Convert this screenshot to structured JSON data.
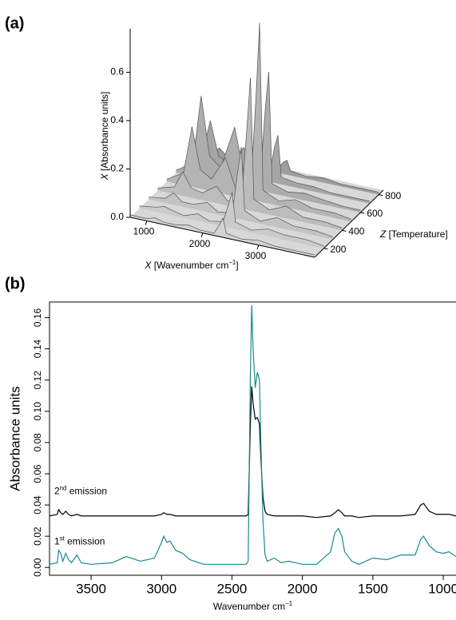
{
  "chart_data": [
    {
      "type": "surface3d",
      "panel": "(a)",
      "y_label": [
        "X",
        " [Absorbance units]"
      ],
      "x_label": [
        "X",
        " [Wavenumber cm",
        "−1",
        "]"
      ],
      "t_label": [
        "Z",
        " [Temperature]"
      ],
      "ylim": [
        0,
        0.78
      ],
      "yticks": [
        {
          "value": 0,
          "label": "0.0"
        },
        {
          "value": 0.2,
          "label": "0.2"
        },
        {
          "value": 0.4,
          "label": "0.4"
        },
        {
          "value": 0.6,
          "label": "0.6"
        }
      ],
      "xlim": [
        700,
        4000
      ],
      "xticks": [
        1000,
        2000,
        3000
      ],
      "tlim": [
        100,
        850
      ],
      "tticks": [
        200,
        400,
        600,
        800
      ],
      "surface": {
        "x": [
          700,
          1000,
          1150,
          1300,
          1500,
          1750,
          1950,
          2200,
          2300,
          2360,
          2420,
          2700,
          3000,
          3300,
          3700,
          4000
        ],
        "t": [
          100,
          200,
          300,
          400,
          500,
          600,
          700,
          800
        ],
        "values": [
          [
            0.01,
            0.01,
            0.02,
            0.01,
            0.01,
            0.02,
            0.01,
            0.01,
            0.05,
            0.08,
            0.02,
            0.01,
            0.02,
            0.01,
            0.01,
            0.01
          ],
          [
            0.01,
            0.02,
            0.03,
            0.02,
            0.01,
            0.03,
            0.01,
            0.02,
            0.1,
            0.15,
            0.03,
            0.01,
            0.03,
            0.02,
            0.02,
            0.01
          ],
          [
            0.01,
            0.02,
            0.05,
            0.02,
            0.02,
            0.04,
            0.01,
            0.02,
            0.2,
            0.3,
            0.04,
            0.01,
            0.04,
            0.02,
            0.02,
            0.01
          ],
          [
            0.01,
            0.03,
            0.1,
            0.04,
            0.03,
            0.07,
            0.02,
            0.03,
            0.35,
            0.55,
            0.05,
            0.02,
            0.05,
            0.02,
            0.02,
            0.01
          ],
          [
            0.01,
            0.05,
            0.25,
            0.08,
            0.05,
            0.15,
            0.02,
            0.04,
            0.45,
            0.74,
            0.05,
            0.02,
            0.04,
            0.02,
            0.02,
            0.01
          ],
          [
            0.01,
            0.05,
            0.34,
            0.1,
            0.06,
            0.24,
            0.02,
            0.03,
            0.35,
            0.5,
            0.04,
            0.02,
            0.03,
            0.02,
            0.01,
            0.01
          ],
          [
            0.01,
            0.04,
            0.2,
            0.06,
            0.04,
            0.12,
            0.02,
            0.02,
            0.15,
            0.2,
            0.03,
            0.02,
            0.02,
            0.01,
            0.01,
            0.01
          ],
          [
            0.01,
            0.02,
            0.05,
            0.02,
            0.02,
            0.04,
            0.01,
            0.02,
            0.05,
            0.06,
            0.02,
            0.01,
            0.02,
            0.01,
            0.01,
            0.01
          ]
        ]
      }
    },
    {
      "type": "line",
      "panel": "(b)",
      "y_label": "Absorbance units",
      "x_label": [
        "Wavenumber cm",
        "−1"
      ],
      "xlim": [
        3795,
        910
      ],
      "xticks": [
        3500,
        3000,
        2500,
        2000,
        1500,
        1000
      ],
      "ylim": [
        -0.005,
        0.17
      ],
      "yticks": [
        {
          "value": 0,
          "label": "0.00"
        },
        {
          "value": 0.02,
          "label": "0.02"
        },
        {
          "value": 0.04,
          "label": "0.04"
        },
        {
          "value": 0.06,
          "label": "0.06"
        },
        {
          "value": 0.08,
          "label": "0.08"
        },
        {
          "value": 0.1,
          "label": "0.10"
        },
        {
          "value": 0.12,
          "label": "0.12"
        },
        {
          "value": 0.14,
          "label": "0.14"
        },
        {
          "value": 0.16,
          "label": "0.16"
        }
      ],
      "x": [
        3795,
        3740,
        3730,
        3715,
        3700,
        3680,
        3660,
        3640,
        3600,
        3570,
        3500,
        3350,
        3250,
        3150,
        3050,
        3000,
        2985,
        2960,
        2940,
        2900,
        2850,
        2800,
        2700,
        2500,
        2400,
        2385,
        2370,
        2360,
        2350,
        2335,
        2320,
        2305,
        2295,
        2280,
        2265,
        2250,
        2200,
        2150,
        2100,
        2000,
        1900,
        1800,
        1770,
        1745,
        1720,
        1700,
        1650,
        1600,
        1500,
        1400,
        1300,
        1200,
        1160,
        1140,
        1100,
        1050,
        1000,
        960,
        910
      ],
      "series": [
        {
          "label": [
            "2",
            "nd",
            " emission"
          ],
          "color": "#000000",
          "values": [
            0.033,
            0.034,
            0.037,
            0.035,
            0.034,
            0.036,
            0.034,
            0.033,
            0.034,
            0.033,
            0.033,
            0.033,
            0.033,
            0.033,
            0.033,
            0.034,
            0.035,
            0.034,
            0.034,
            0.033,
            0.033,
            0.033,
            0.033,
            0.033,
            0.033,
            0.034,
            0.09,
            0.116,
            0.105,
            0.095,
            0.096,
            0.092,
            0.07,
            0.045,
            0.036,
            0.034,
            0.033,
            0.033,
            0.033,
            0.033,
            0.032,
            0.033,
            0.035,
            0.037,
            0.035,
            0.033,
            0.033,
            0.032,
            0.033,
            0.033,
            0.033,
            0.034,
            0.04,
            0.041,
            0.036,
            0.034,
            0.034,
            0.034,
            0.033
          ]
        },
        {
          "label": [
            "1",
            "st",
            " emission"
          ],
          "color": "#1a8a8a",
          "values": [
            0.002,
            0.003,
            0.011,
            0.009,
            0.004,
            0.009,
            0.005,
            0.003,
            0.008,
            0.003,
            0.002,
            0.003,
            0.007,
            0.004,
            0.006,
            0.016,
            0.02,
            0.016,
            0.017,
            0.011,
            0.009,
            0.005,
            0.002,
            0.002,
            0.002,
            0.004,
            0.12,
            0.168,
            0.14,
            0.115,
            0.125,
            0.12,
            0.08,
            0.03,
            0.008,
            0.004,
            0.006,
            0.003,
            0.004,
            0.002,
            0.002,
            0.01,
            0.022,
            0.025,
            0.02,
            0.01,
            0.004,
            0.002,
            0.006,
            0.005,
            0.008,
            0.008,
            0.018,
            0.02,
            0.014,
            0.01,
            0.009,
            0.01,
            0.007
          ]
        }
      ]
    }
  ]
}
